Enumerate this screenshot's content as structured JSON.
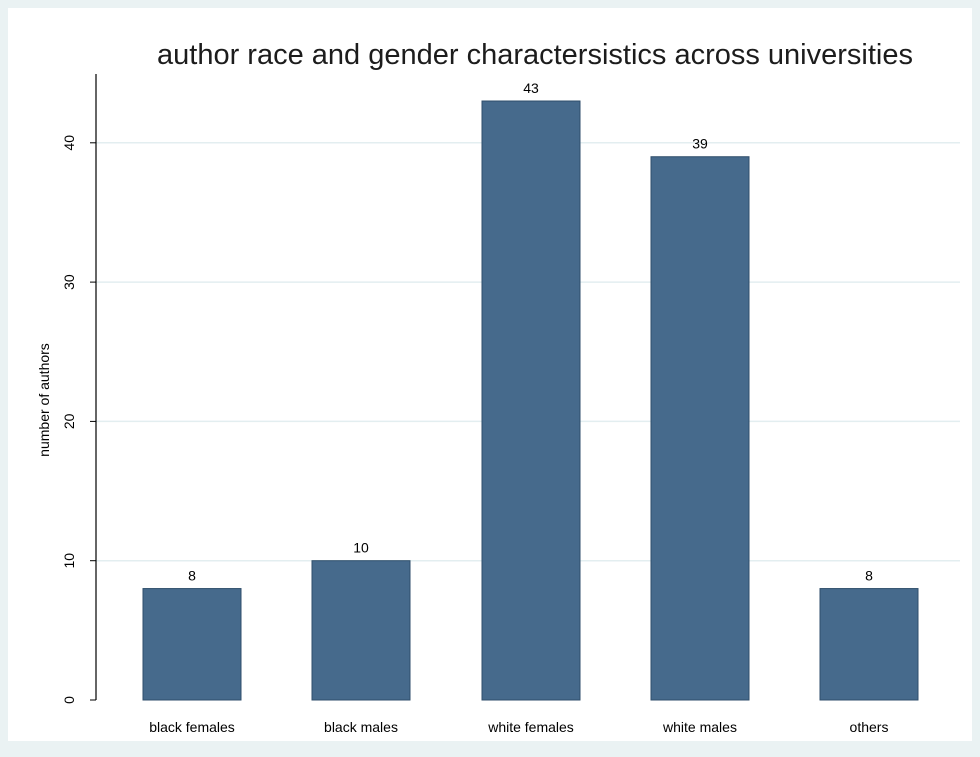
{
  "chart_data": {
    "type": "bar",
    "title": "author race and gender charactersistics across universities",
    "ylabel": "number of authors",
    "xlabel": "",
    "categories": [
      "black females",
      "black males",
      "white females",
      "white males",
      "others"
    ],
    "values": [
      8,
      10,
      43,
      39,
      8
    ],
    "data_labels": [
      "8",
      "10",
      "43",
      "39",
      "8"
    ],
    "yticks": [
      0,
      10,
      20,
      30,
      40
    ],
    "ytick_labels": [
      "0",
      "10",
      "20",
      "30",
      "40"
    ],
    "ylim": [
      0,
      45
    ],
    "grid": true,
    "colors": {
      "bar": "#466a8c",
      "bar_edge": "#2f4e6b",
      "plot_bg": "#ffffff",
      "outer_bg": "#eaf2f3",
      "grid": "#e3eef0"
    }
  }
}
